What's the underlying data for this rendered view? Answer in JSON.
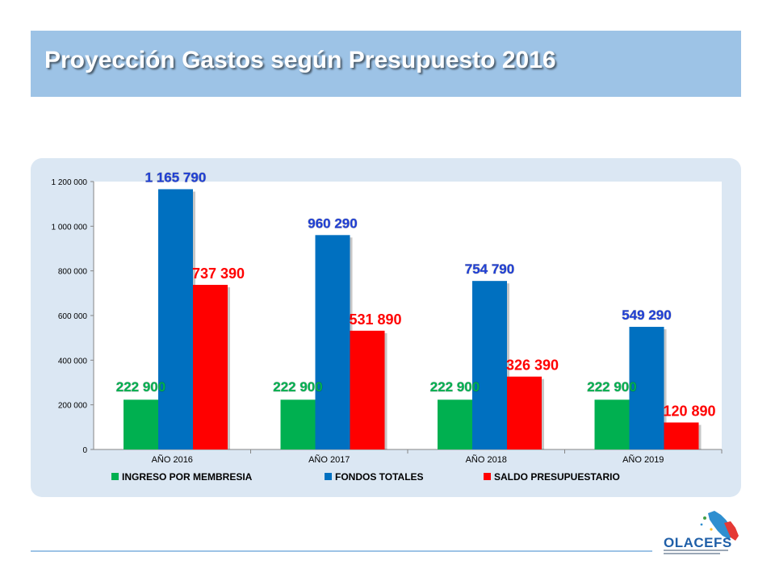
{
  "slide": {
    "title": "Proyección Gastos según Presupuesto 2016"
  },
  "logo": {
    "text": "OLACEFS"
  },
  "colors": {
    "ingreso": "#00b050",
    "fondos": "#0070c0",
    "saldo": "#ff0000",
    "title_bar": "#9dc3e6",
    "chart_bg": "#dbe7f3"
  },
  "chart_data": {
    "type": "bar",
    "categories": [
      "AÑO 2016",
      "AÑO 2017",
      "AÑO 2018",
      "AÑO 2019"
    ],
    "series": [
      {
        "name": "INGRESO POR MEMBRESIA",
        "values": [
          222900,
          222900,
          222900,
          222900
        ],
        "labels": [
          "222 900",
          "222 900",
          "222 900",
          "222 900"
        ]
      },
      {
        "name": "FONDOS TOTALES",
        "values": [
          1165790,
          960290,
          754790,
          549290
        ],
        "labels": [
          "1 165 790",
          "960 290",
          "754 790",
          "549 290"
        ]
      },
      {
        "name": "SALDO PRESUPUESTARIO",
        "values": [
          737390,
          531890,
          326390,
          120890
        ],
        "labels": [
          "737 390",
          "531 890",
          "326 390",
          "120 890"
        ]
      }
    ],
    "yticks": [
      0,
      200000,
      400000,
      600000,
      800000,
      1000000,
      1200000
    ],
    "ytick_labels": [
      "0",
      "200 000",
      "400 000",
      "600 000",
      "800 000",
      "1 000 000",
      "1 200 000"
    ],
    "ylim": [
      0,
      1200000
    ],
    "legend_position": "bottom",
    "grid": false
  }
}
